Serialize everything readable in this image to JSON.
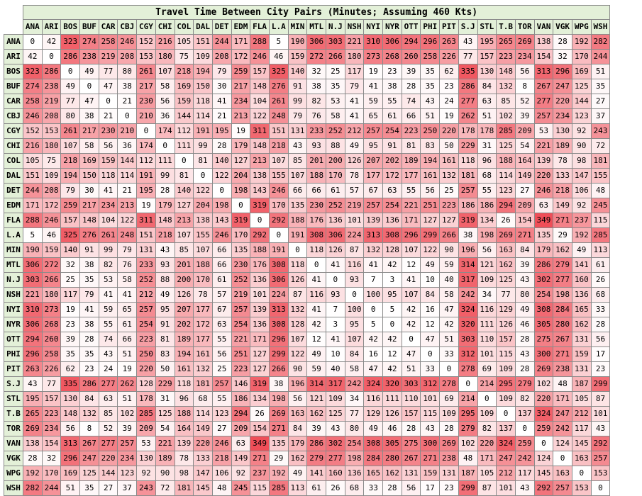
{
  "title": "Travel Time Between City Pairs (Minutes; Assuming 460 Kts)",
  "colors": {
    "header_fill": "#e3f0d8",
    "low": "#ffffff",
    "high": "#ef4e58"
  },
  "cities": [
    "ANA",
    "ARI",
    "BOS",
    "BUF",
    "CAR",
    "CBJ",
    "CGY",
    "CHI",
    "COL",
    "DAL",
    "DET",
    "EDM",
    "FLA",
    "L.A",
    "MIN",
    "MTL",
    "N.J",
    "NSH",
    "NYI",
    "NYR",
    "OTT",
    "PHI",
    "PIT",
    "S.J",
    "STL",
    "T.B",
    "TOR",
    "VAN",
    "VGK",
    "WPG",
    "WSH"
  ],
  "matrix": [
    [
      0,
      42,
      323,
      274,
      258,
      246,
      152,
      216,
      105,
      151,
      244,
      171,
      288,
      5,
      190,
      306,
      303,
      221,
      310,
      306,
      294,
      296,
      263,
      43,
      195,
      265,
      269,
      138,
      28,
      192,
      282
    ],
    [
      42,
      0,
      286,
      238,
      219,
      208,
      153,
      180,
      75,
      109,
      208,
      172,
      246,
      46,
      159,
      272,
      266,
      180,
      273,
      268,
      260,
      258,
      226,
      77,
      157,
      223,
      234,
      154,
      32,
      170,
      244
    ],
    [
      323,
      286,
      0,
      49,
      77,
      80,
      261,
      107,
      218,
      194,
      79,
      259,
      157,
      325,
      140,
      32,
      25,
      117,
      19,
      23,
      39,
      35,
      62,
      335,
      130,
      148,
      56,
      313,
      296,
      169,
      51
    ],
    [
      274,
      238,
      49,
      0,
      47,
      38,
      217,
      58,
      169,
      150,
      30,
      217,
      148,
      276,
      91,
      38,
      35,
      79,
      41,
      38,
      28,
      35,
      23,
      286,
      84,
      132,
      8,
      267,
      247,
      125,
      35
    ],
    [
      258,
      219,
      77,
      47,
      0,
      21,
      230,
      56,
      159,
      118,
      41,
      234,
      104,
      261,
      99,
      82,
      53,
      41,
      59,
      55,
      74,
      43,
      24,
      277,
      63,
      85,
      52,
      277,
      220,
      144,
      27
    ],
    [
      246,
      208,
      80,
      38,
      21,
      0,
      210,
      36,
      144,
      114,
      21,
      213,
      122,
      248,
      79,
      76,
      58,
      41,
      65,
      61,
      66,
      51,
      19,
      262,
      51,
      102,
      39,
      257,
      234,
      123,
      37
    ],
    [
      152,
      153,
      261,
      217,
      230,
      210,
      0,
      174,
      112,
      191,
      195,
      19,
      311,
      151,
      131,
      233,
      252,
      212,
      257,
      254,
      223,
      250,
      220,
      178,
      178,
      285,
      209,
      53,
      130,
      92,
      243
    ],
    [
      216,
      180,
      107,
      58,
      56,
      36,
      174,
      0,
      111,
      99,
      28,
      179,
      148,
      218,
      43,
      93,
      88,
      49,
      95,
      91,
      81,
      83,
      50,
      229,
      31,
      125,
      54,
      221,
      189,
      90,
      72
    ],
    [
      105,
      75,
      218,
      169,
      159,
      144,
      112,
      111,
      0,
      81,
      140,
      127,
      213,
      107,
      85,
      201,
      200,
      126,
      207,
      202,
      189,
      194,
      161,
      118,
      96,
      188,
      164,
      139,
      78,
      98,
      181
    ],
    [
      151,
      109,
      194,
      150,
      118,
      114,
      191,
      99,
      81,
      0,
      122,
      204,
      138,
      155,
      107,
      188,
      170,
      78,
      177,
      172,
      177,
      161,
      132,
      181,
      68,
      114,
      149,
      220,
      133,
      147,
      155
    ],
    [
      244,
      208,
      79,
      30,
      41,
      21,
      195,
      28,
      140,
      122,
      0,
      198,
      143,
      246,
      66,
      66,
      61,
      57,
      67,
      63,
      55,
      56,
      25,
      257,
      55,
      123,
      27,
      246,
      218,
      106,
      48
    ],
    [
      171,
      172,
      259,
      217,
      234,
      213,
      19,
      179,
      127,
      204,
      198,
      0,
      319,
      170,
      135,
      230,
      252,
      219,
      257,
      254,
      221,
      251,
      223,
      186,
      186,
      294,
      209,
      63,
      149,
      92,
      245
    ],
    [
      288,
      246,
      157,
      148,
      104,
      122,
      311,
      148,
      213,
      138,
      143,
      319,
      0,
      292,
      188,
      176,
      136,
      101,
      139,
      136,
      171,
      127,
      127,
      319,
      134,
      26,
      154,
      349,
      271,
      237,
      115
    ],
    [
      5,
      46,
      325,
      276,
      261,
      248,
      151,
      218,
      107,
      155,
      246,
      170,
      292,
      0,
      191,
      308,
      306,
      224,
      313,
      308,
      296,
      299,
      266,
      38,
      198,
      269,
      271,
      135,
      29,
      192,
      285
    ],
    [
      190,
      159,
      140,
      91,
      99,
      79,
      131,
      43,
      85,
      107,
      66,
      135,
      188,
      191,
      0,
      118,
      126,
      87,
      132,
      128,
      107,
      122,
      90,
      196,
      56,
      163,
      84,
      179,
      162,
      49,
      113
    ],
    [
      306,
      272,
      32,
      38,
      82,
      76,
      233,
      93,
      201,
      188,
      66,
      230,
      176,
      308,
      118,
      0,
      41,
      116,
      41,
      42,
      12,
      49,
      59,
      314,
      121,
      162,
      39,
      286,
      279,
      141,
      61
    ],
    [
      303,
      266,
      25,
      35,
      53,
      58,
      252,
      88,
      200,
      170,
      61,
      252,
      136,
      306,
      126,
      41,
      0,
      93,
      7,
      3,
      41,
      10,
      40,
      317,
      109,
      125,
      43,
      302,
      277,
      160,
      26
    ],
    [
      221,
      180,
      117,
      79,
      41,
      41,
      212,
      49,
      126,
      78,
      57,
      219,
      101,
      224,
      87,
      116,
      93,
      0,
      100,
      95,
      107,
      84,
      58,
      242,
      34,
      77,
      80,
      254,
      198,
      136,
      68
    ],
    [
      310,
      273,
      19,
      41,
      59,
      65,
      257,
      95,
      207,
      177,
      67,
      257,
      139,
      313,
      132,
      41,
      7,
      100,
      0,
      5,
      42,
      16,
      47,
      324,
      116,
      129,
      49,
      308,
      284,
      165,
      33
    ],
    [
      306,
      268,
      23,
      38,
      55,
      61,
      254,
      91,
      202,
      172,
      63,
      254,
      136,
      308,
      128,
      42,
      3,
      95,
      5,
      0,
      42,
      12,
      42,
      320,
      111,
      126,
      46,
      305,
      280,
      162,
      28
    ],
    [
      294,
      260,
      39,
      28,
      74,
      66,
      223,
      81,
      189,
      177,
      55,
      221,
      171,
      296,
      107,
      12,
      41,
      107,
      42,
      42,
      0,
      47,
      51,
      303,
      110,
      157,
      28,
      275,
      267,
      131,
      56
    ],
    [
      296,
      258,
      35,
      35,
      43,
      51,
      250,
      83,
      194,
      161,
      56,
      251,
      127,
      299,
      122,
      49,
      10,
      84,
      16,
      12,
      47,
      0,
      33,
      312,
      101,
      115,
      43,
      300,
      271,
      159,
      17
    ],
    [
      263,
      226,
      62,
      23,
      24,
      19,
      220,
      50,
      161,
      132,
      25,
      223,
      127,
      266,
      90,
      59,
      40,
      58,
      47,
      42,
      51,
      33,
      0,
      278,
      69,
      109,
      28,
      269,
      238,
      131,
      23
    ],
    [
      43,
      77,
      335,
      286,
      277,
      262,
      128,
      229,
      118,
      181,
      257,
      146,
      319,
      38,
      196,
      314,
      317,
      242,
      324,
      320,
      303,
      312,
      278,
      0,
      214,
      295,
      279,
      102,
      48,
      187,
      299
    ],
    [
      195,
      157,
      130,
      84,
      63,
      51,
      178,
      31,
      96,
      68,
      55,
      186,
      134,
      198,
      56,
      121,
      109,
      34,
      116,
      111,
      110,
      101,
      69,
      214,
      0,
      109,
      82,
      220,
      171,
      105,
      87
    ],
    [
      265,
      223,
      148,
      132,
      85,
      102,
      285,
      125,
      188,
      114,
      123,
      294,
      26,
      269,
      163,
      162,
      125,
      77,
      129,
      126,
      157,
      115,
      109,
      295,
      109,
      0,
      137,
      324,
      247,
      212,
      101
    ],
    [
      269,
      234,
      56,
      8,
      52,
      39,
      209,
      54,
      164,
      149,
      27,
      209,
      154,
      271,
      84,
      39,
      43,
      80,
      49,
      46,
      28,
      43,
      28,
      279,
      82,
      137,
      0,
      259,
      242,
      117,
      43
    ],
    [
      138,
      154,
      313,
      267,
      277,
      257,
      53,
      221,
      139,
      220,
      246,
      63,
      349,
      135,
      179,
      286,
      302,
      254,
      308,
      305,
      275,
      300,
      269,
      102,
      220,
      324,
      259,
      0,
      124,
      145,
      292
    ],
    [
      28,
      32,
      296,
      247,
      220,
      234,
      130,
      189,
      78,
      133,
      218,
      149,
      271,
      29,
      162,
      279,
      277,
      198,
      284,
      280,
      267,
      271,
      238,
      48,
      171,
      247,
      242,
      124,
      0,
      163,
      257
    ],
    [
      192,
      170,
      169,
      125,
      144,
      123,
      92,
      90,
      98,
      147,
      106,
      92,
      237,
      192,
      49,
      141,
      160,
      136,
      165,
      162,
      131,
      159,
      131,
      187,
      105,
      212,
      117,
      145,
      163,
      0,
      153
    ],
    [
      282,
      244,
      51,
      35,
      27,
      37,
      243,
      72,
      181,
      145,
      48,
      245,
      115,
      285,
      113,
      61,
      26,
      68,
      33,
      28,
      56,
      17,
      23,
      299,
      87,
      101,
      43,
      292,
      257,
      153,
      0
    ]
  ]
}
